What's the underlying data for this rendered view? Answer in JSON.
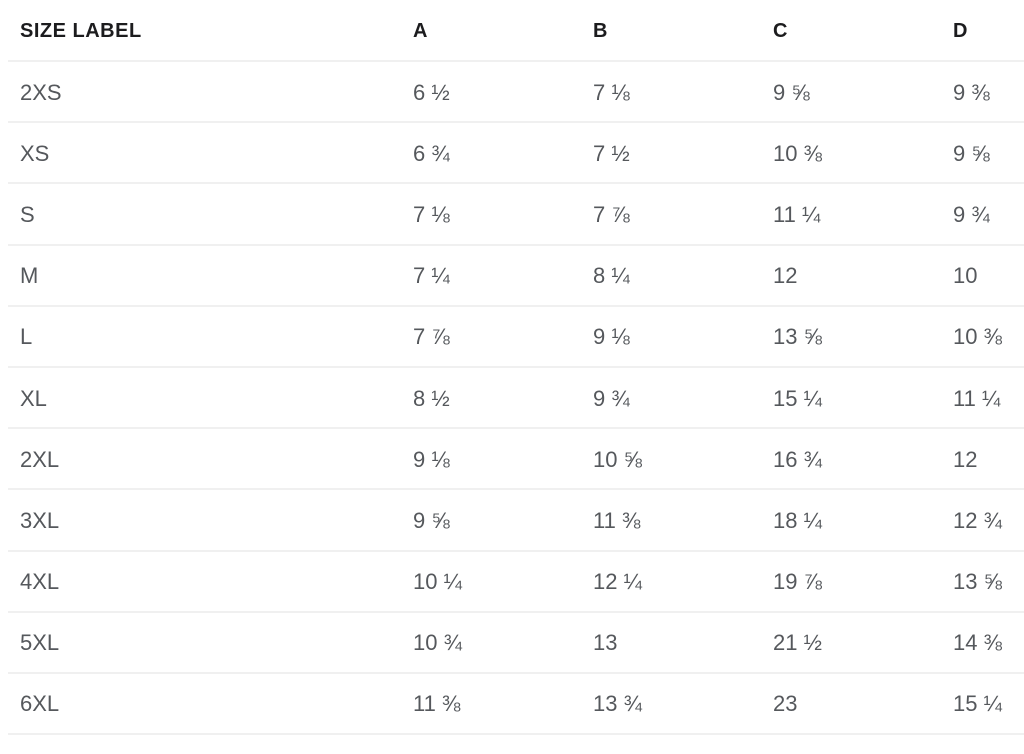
{
  "table": {
    "columns": [
      "SIZE LABEL",
      "A",
      "B",
      "C",
      "D"
    ],
    "rows": [
      {
        "label": "2XS",
        "values": [
          "6 ½",
          "7 ⅛",
          "9 ⅝",
          "9 ⅜"
        ]
      },
      {
        "label": "XS",
        "values": [
          "6 ¾",
          "7 ½",
          "10 ⅜",
          "9 ⅝"
        ]
      },
      {
        "label": "S",
        "values": [
          "7 ⅛",
          "7 ⅞",
          "11 ¼",
          "9 ¾"
        ]
      },
      {
        "label": "M",
        "values": [
          "7 ¼",
          "8 ¼",
          "12",
          "10"
        ]
      },
      {
        "label": "L",
        "values": [
          "7 ⅞",
          "9 ⅛",
          "13 ⅝",
          "10 ⅜"
        ]
      },
      {
        "label": "XL",
        "values": [
          "8 ½",
          "9 ¾",
          "15 ¼",
          "11 ¼"
        ]
      },
      {
        "label": "2XL",
        "values": [
          "9 ⅛",
          "10 ⅝",
          "16 ¾",
          "12"
        ]
      },
      {
        "label": "3XL",
        "values": [
          "9 ⅝",
          "11 ⅜",
          "18 ¼",
          "12 ¾"
        ]
      },
      {
        "label": "4XL",
        "values": [
          "10 ¼",
          "12 ¼",
          "19 ⅞",
          "13 ⅝"
        ]
      },
      {
        "label": "5XL",
        "values": [
          "10 ¾",
          "13",
          "21 ½",
          "14 ⅜"
        ]
      },
      {
        "label": "6XL",
        "values": [
          "11 ⅜",
          "13 ¾",
          "23",
          "15 ¼"
        ]
      }
    ]
  },
  "chart_data": {
    "type": "table",
    "columns": [
      "SIZE LABEL",
      "A",
      "B",
      "C",
      "D"
    ],
    "rows": [
      {
        "size": "2XS",
        "A": 6.5,
        "B": 7.125,
        "C": 9.625,
        "D": 9.375
      },
      {
        "size": "XS",
        "A": 6.75,
        "B": 7.5,
        "C": 10.375,
        "D": 9.625
      },
      {
        "size": "S",
        "A": 7.125,
        "B": 7.875,
        "C": 11.25,
        "D": 9.75
      },
      {
        "size": "M",
        "A": 7.25,
        "B": 8.25,
        "C": 12,
        "D": 10
      },
      {
        "size": "L",
        "A": 7.875,
        "B": 9.125,
        "C": 13.625,
        "D": 10.375
      },
      {
        "size": "XL",
        "A": 8.5,
        "B": 9.75,
        "C": 15.25,
        "D": 11.25
      },
      {
        "size": "2XL",
        "A": 9.125,
        "B": 10.625,
        "C": 16.75,
        "D": 12
      },
      {
        "size": "3XL",
        "A": 9.625,
        "B": 11.375,
        "C": 18.25,
        "D": 12.75
      },
      {
        "size": "4XL",
        "A": 10.25,
        "B": 12.25,
        "C": 19.875,
        "D": 13.625
      },
      {
        "size": "5XL",
        "A": 10.75,
        "B": 13,
        "C": 21.5,
        "D": 14.375
      },
      {
        "size": "6XL",
        "A": 11.375,
        "B": 13.75,
        "C": 23,
        "D": 15.25
      }
    ]
  },
  "colors": {
    "header_text": "#1c1c1e",
    "cell_text": "#55585c",
    "divider": "#f0f0f0",
    "background": "#ffffff"
  }
}
